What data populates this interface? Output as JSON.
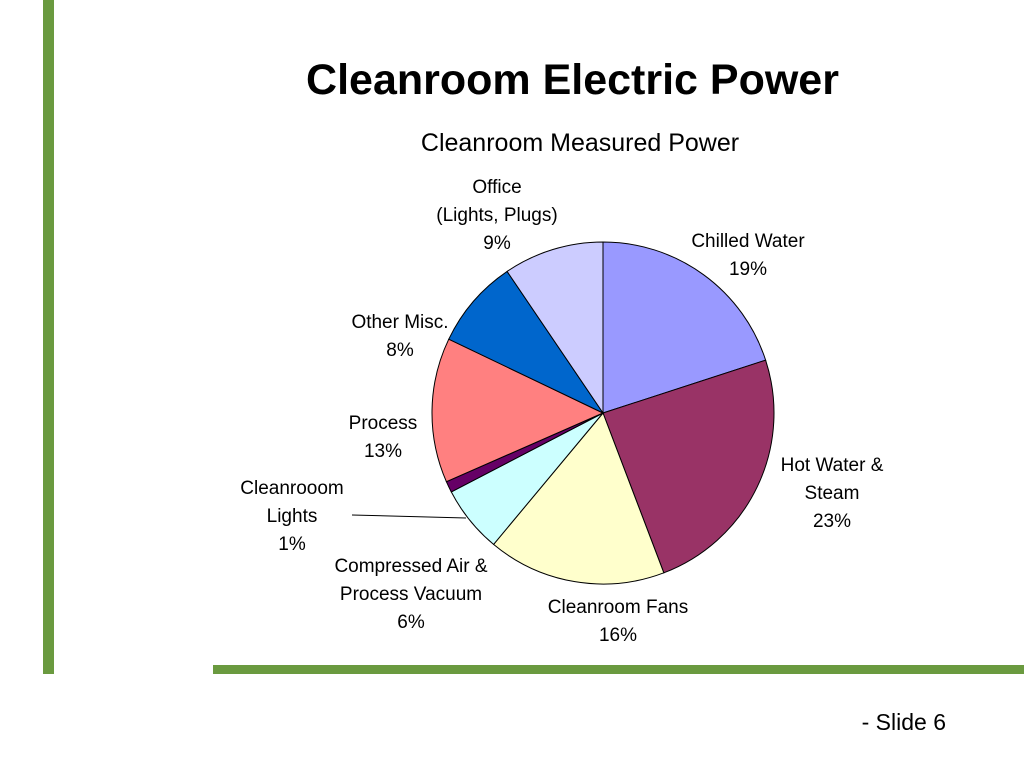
{
  "slide": {
    "title": "Cleanroom Electric Power",
    "footer": "- Slide 6",
    "accent_color": "#6a9a3f"
  },
  "chart_data": {
    "type": "pie",
    "title": "Cleanroom Measured Power",
    "slices": [
      {
        "label_lines": [
          "Chilled Water"
        ],
        "percent_label": "19%",
        "value": 19,
        "color": "#9999ff"
      },
      {
        "label_lines": [
          "Hot Water &",
          "Steam"
        ],
        "percent_label": "23%",
        "value": 23,
        "color": "#993366"
      },
      {
        "label_lines": [
          "Cleanroom Fans"
        ],
        "percent_label": "16%",
        "value": 16,
        "color": "#ffffcc"
      },
      {
        "label_lines": [
          "Compressed Air &",
          "Process Vacuum"
        ],
        "percent_label": "6%",
        "value": 6,
        "color": "#ccffff"
      },
      {
        "label_lines": [
          "Cleanrooom",
          "Lights"
        ],
        "percent_label": "1%",
        "value": 1,
        "color": "#660066"
      },
      {
        "label_lines": [
          "Process"
        ],
        "percent_label": "13%",
        "value": 13,
        "color": "#ff8080"
      },
      {
        "label_lines": [
          "Other Misc."
        ],
        "percent_label": "8%",
        "value": 8,
        "color": "#0066cc"
      },
      {
        "label_lines": [
          "Office",
          "(Lights, Plugs)"
        ],
        "percent_label": "9%",
        "value": 9,
        "color": "#ccccff"
      }
    ]
  }
}
